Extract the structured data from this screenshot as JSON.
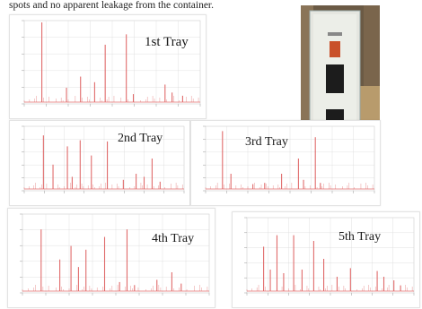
{
  "caption": "spots and no apparent leakage from the container.",
  "trays": [
    {
      "label": "1st Tray",
      "peaks": [
        [
          0.1,
          1.0
        ],
        [
          0.24,
          0.18
        ],
        [
          0.32,
          0.32
        ],
        [
          0.4,
          0.25
        ],
        [
          0.46,
          0.72
        ],
        [
          0.58,
          0.85
        ],
        [
          0.62,
          0.1
        ],
        [
          0.8,
          0.22
        ],
        [
          0.84,
          0.12
        ],
        [
          0.9,
          0.08
        ]
      ]
    },
    {
      "label": "2nd Tray",
      "peaks": [
        [
          0.12,
          0.88
        ],
        [
          0.18,
          0.4
        ],
        [
          0.27,
          0.7
        ],
        [
          0.3,
          0.2
        ],
        [
          0.35,
          0.8
        ],
        [
          0.42,
          0.55
        ],
        [
          0.52,
          0.78
        ],
        [
          0.62,
          0.15
        ],
        [
          0.7,
          0.25
        ],
        [
          0.75,
          0.2
        ],
        [
          0.8,
          0.5
        ],
        [
          0.85,
          0.12
        ]
      ]
    },
    {
      "label": "3rd Tray",
      "peaks": [
        [
          0.1,
          0.95
        ],
        [
          0.15,
          0.25
        ],
        [
          0.28,
          0.08
        ],
        [
          0.35,
          0.1
        ],
        [
          0.45,
          0.25
        ],
        [
          0.55,
          0.5
        ],
        [
          0.58,
          0.15
        ],
        [
          0.65,
          0.85
        ],
        [
          0.68,
          0.1
        ]
      ]
    },
    {
      "label": "4th Tray",
      "peaks": [
        [
          0.1,
          0.82
        ],
        [
          0.2,
          0.42
        ],
        [
          0.26,
          0.6
        ],
        [
          0.3,
          0.32
        ],
        [
          0.34,
          0.55
        ],
        [
          0.44,
          0.72
        ],
        [
          0.52,
          0.12
        ],
        [
          0.56,
          0.82
        ],
        [
          0.6,
          0.08
        ],
        [
          0.72,
          0.15
        ],
        [
          0.8,
          0.25
        ],
        [
          0.85,
          0.1
        ]
      ]
    },
    {
      "label": "5th Tray",
      "peaks": [
        [
          0.1,
          0.62
        ],
        [
          0.14,
          0.3
        ],
        [
          0.18,
          0.78
        ],
        [
          0.22,
          0.25
        ],
        [
          0.28,
          0.78
        ],
        [
          0.33,
          0.3
        ],
        [
          0.4,
          0.7
        ],
        [
          0.46,
          0.45
        ],
        [
          0.54,
          0.2
        ],
        [
          0.62,
          0.32
        ],
        [
          0.78,
          0.28
        ],
        [
          0.82,
          0.2
        ],
        [
          0.88,
          0.15
        ],
        [
          0.92,
          0.08
        ]
      ]
    }
  ],
  "colors": {
    "line": "#e06b6b",
    "grid": "#d9d9d9",
    "cabinet": "#e4e4dd"
  }
}
